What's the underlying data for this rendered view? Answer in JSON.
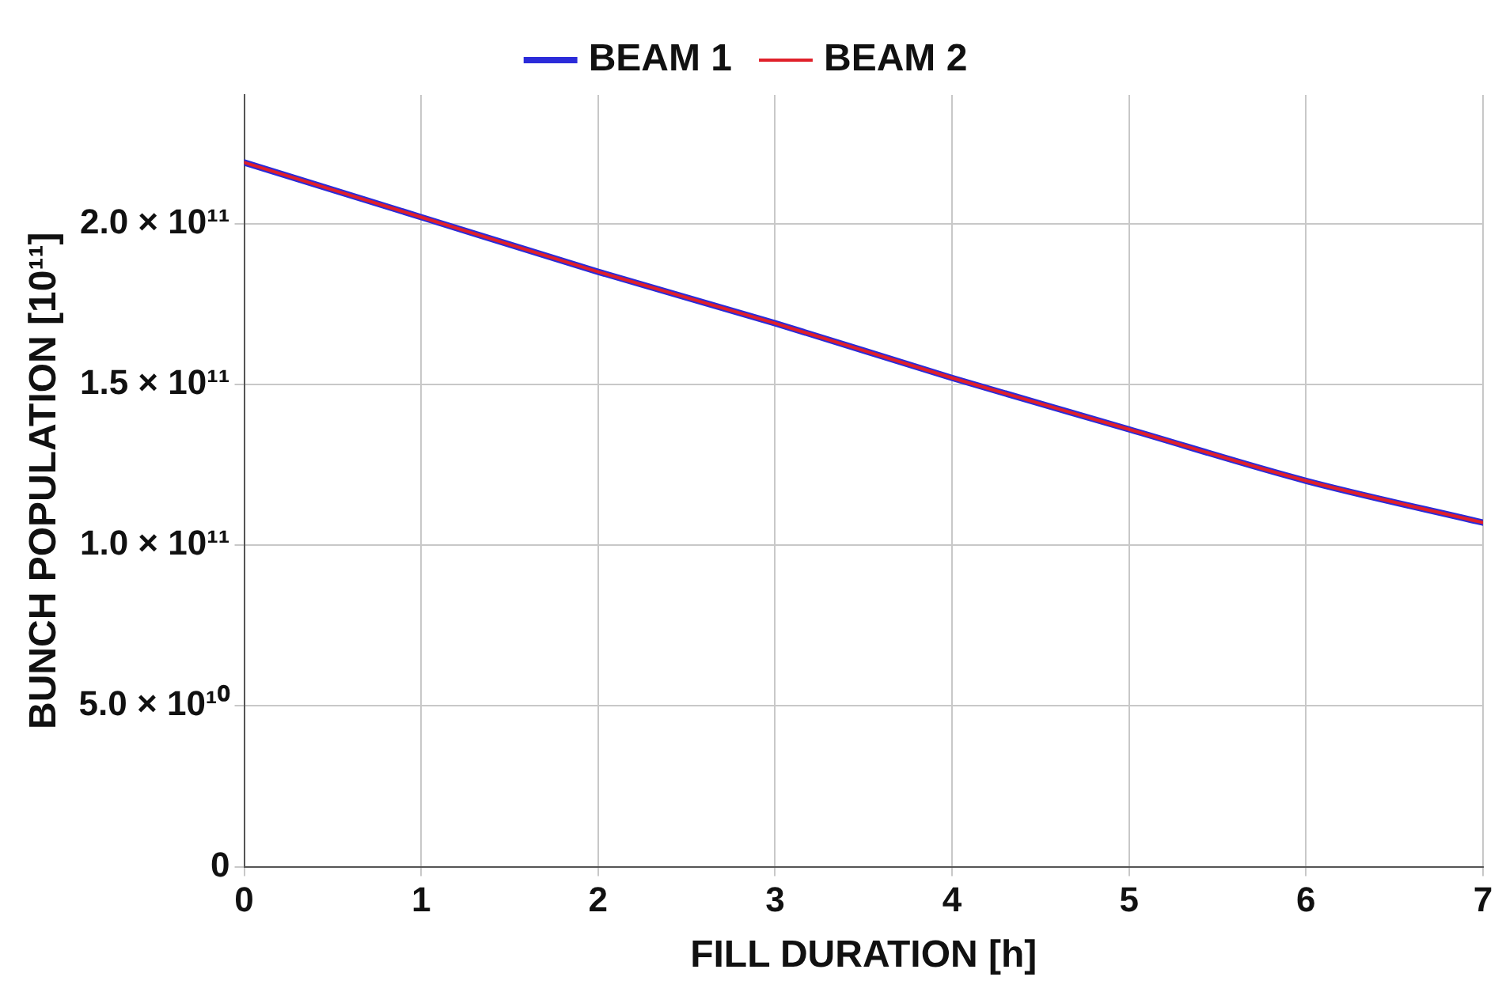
{
  "chart_data": {
    "type": "line",
    "xlabel": "FILL DURATION [h]",
    "ylabel": "BUNCH POPULATION [10¹¹]",
    "x": [
      0,
      1,
      2,
      3,
      4,
      5,
      6,
      7
    ],
    "series": [
      {
        "name": "BEAM 1",
        "color": "#2b2bd9",
        "values": [
          219000000000,
          202000000000,
          185000000000,
          169000000000,
          152000000000,
          136000000000,
          120000000000,
          107000000000
        ]
      },
      {
        "name": "BEAM 2",
        "color": "#e0202a",
        "values": [
          219000000000,
          202000000000,
          185000000000,
          169000000000,
          152000000000,
          136000000000,
          120000000000,
          107000000000
        ]
      }
    ],
    "xlim": [
      0,
      7
    ],
    "xticks": [
      0,
      1,
      2,
      3,
      4,
      5,
      6,
      7
    ],
    "ylim": [
      0,
      240000000000
    ],
    "yticks": [
      0,
      {
        "value": 50000000000,
        "label": "5.0 × 10¹⁰"
      },
      {
        "value": 100000000000,
        "label": "1.0 × 10¹¹"
      },
      {
        "value": 150000000000,
        "label": "1.5 × 10¹¹"
      },
      {
        "value": 200000000000,
        "label": "2.0 × 10¹¹"
      }
    ],
    "grid": true,
    "legend": "top",
    "marker": "none",
    "line_style": "solid"
  }
}
